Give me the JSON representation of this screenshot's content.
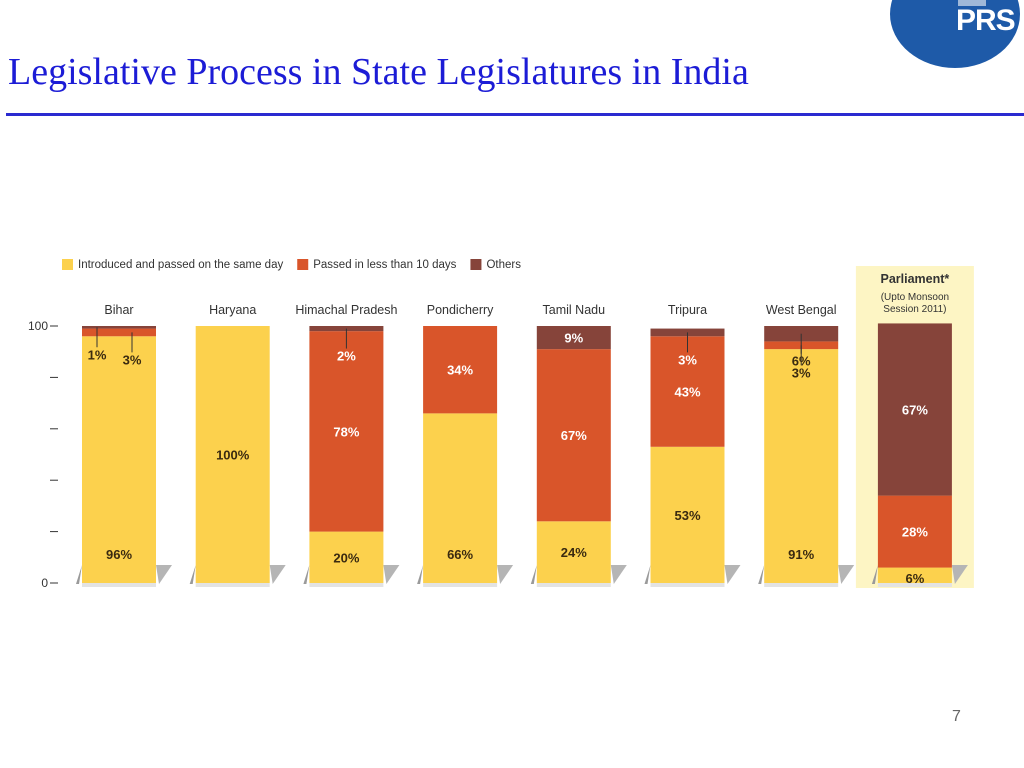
{
  "slide": {
    "title": "Legislative Process in State Legislatures in India",
    "logo_text": "PRS",
    "page_number": "7"
  },
  "colors": {
    "title": "#1c1cd6",
    "same_day": "#fcd14d",
    "less_than_10": "#d9552a",
    "others": "#86443a",
    "parliament_panel": "#fdf5c4",
    "logo": "#1e5aa8"
  },
  "chart_data": {
    "type": "bar",
    "stacked": true,
    "categories": [
      "Bihar",
      "Haryana",
      "Himachal Pradesh",
      "Pondicherry",
      "Tamil Nadu",
      "Tripura",
      "West Bengal",
      "Parliament*"
    ],
    "category_note": "(Upto Monsoon Session 2011)",
    "series": [
      {
        "name": "Introduced and passed on the same day",
        "values": [
          96,
          100,
          20,
          66,
          24,
          53,
          91,
          6
        ],
        "color": "#fcd14d"
      },
      {
        "name": "Passed in less than 10 days",
        "values": [
          3,
          0,
          78,
          34,
          67,
          43,
          3,
          28
        ],
        "color": "#d9552a"
      },
      {
        "name": "Others",
        "values": [
          1,
          0,
          2,
          0,
          9,
          3,
          6,
          67
        ],
        "color": "#86443a"
      }
    ],
    "data_labels": [
      [
        "96%",
        "100%",
        "20%",
        "66%",
        "24%",
        "53%",
        "91%",
        "6%"
      ],
      [
        "3%",
        "",
        "78%",
        "34%",
        "67%",
        "43%",
        "3%",
        "28%"
      ],
      [
        "1%",
        "",
        "2%",
        "",
        "9%",
        "3%",
        "6%",
        "67%"
      ]
    ],
    "ylim": [
      0,
      100
    ],
    "y_tick_labels": [
      "0",
      "",
      "",
      "",
      "",
      "100"
    ],
    "legend_position": "top-left",
    "highlighted_category": "Parliament*"
  }
}
